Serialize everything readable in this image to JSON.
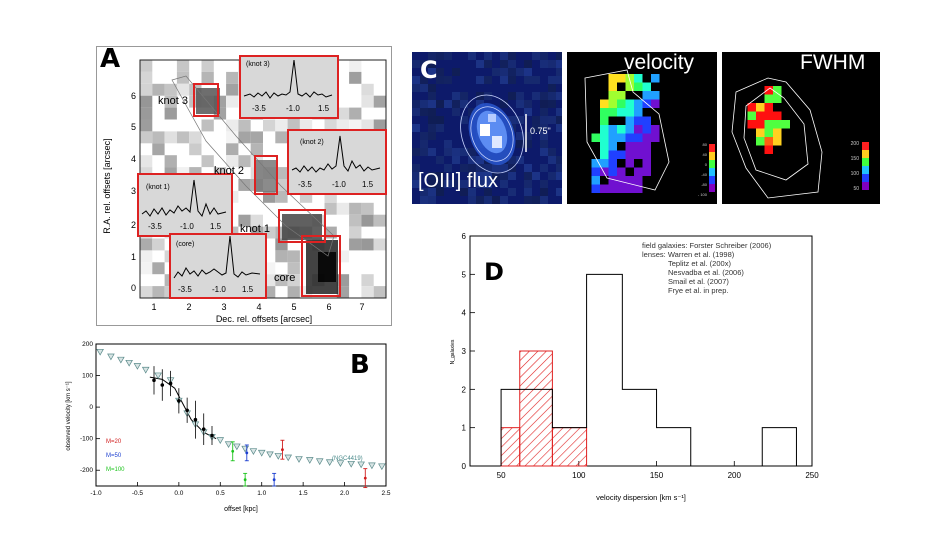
{
  "panel_a": {
    "letter": "A",
    "ylabel": "R.A. rel. offsets [arcsec]",
    "xlabel": "Dec. rel. offsets [arcsec]",
    "y_ticks": [
      "0",
      "1",
      "2",
      "3",
      "4",
      "5",
      "6"
    ],
    "x_ticks": [
      "1",
      "2",
      "3",
      "4",
      "5",
      "6",
      "7"
    ],
    "region_labels": {
      "knot3": "knot 3",
      "knot2": "knot 2",
      "knot1": "knot 1",
      "core": "core"
    },
    "insets": [
      {
        "name": "knot3",
        "title": "(knot 3)",
        "ticks": [
          "-3.5",
          "-1.0",
          "1.5"
        ]
      },
      {
        "name": "knot2",
        "title": "(knot 2)",
        "ticks": [
          "-3.5",
          "-1.0",
          "1.5"
        ]
      },
      {
        "name": "knot1",
        "title": "(knot 1)",
        "ticks": [
          "-3.5",
          "-1.0",
          "1.5"
        ]
      },
      {
        "name": "core",
        "title": "(core)",
        "ticks": [
          "-3.5",
          "-1.0",
          "1.5"
        ]
      }
    ]
  },
  "panel_c": {
    "letter": "C",
    "scale_label": "0.75\"",
    "flux_label": "[OIII] flux",
    "velocity_label": "velocity",
    "fwhm_label": "FWHM",
    "velocity_colorbar_ticks": [
      "80",
      "40",
      "0",
      "-40",
      "-80",
      "- 100"
    ],
    "fwhm_colorbar_ticks": [
      "200",
      "150",
      "100",
      "50"
    ]
  },
  "chart_data": [
    {
      "type": "scatter",
      "panel": "B",
      "letter": "B",
      "xlabel": "offset [kpc]",
      "ylabel": "observed velocity [km s⁻¹]",
      "xlim": [
        -1.0,
        2.5
      ],
      "ylim": [
        -250,
        200
      ],
      "x_ticks": [
        -1.0,
        -0.5,
        0.0,
        0.5,
        1.0,
        1.5,
        2.0,
        2.5
      ],
      "x_tick_labels": [
        "-1.0",
        "-0.5",
        "0.0",
        "0.5",
        "1.0",
        "1.5",
        "2.0",
        "2.5"
      ],
      "y_ticks": [
        -200,
        -100,
        0,
        100,
        200
      ],
      "y_tick_labels": [
        "-200",
        "-100",
        "0",
        "100",
        "200"
      ],
      "legend": [
        "M=20",
        "M=50",
        "M=100"
      ],
      "legend_colors": [
        "#d01c1c",
        "#1c3fd0",
        "#1cc41c"
      ],
      "annotation": "(NGC4419)",
      "ngc4419_points": [
        {
          "x": -0.95,
          "y": 175
        },
        {
          "x": -0.82,
          "y": 160
        },
        {
          "x": -0.7,
          "y": 150
        },
        {
          "x": -0.6,
          "y": 140
        },
        {
          "x": -0.5,
          "y": 130
        },
        {
          "x": -0.4,
          "y": 118
        },
        {
          "x": -0.25,
          "y": 100
        },
        {
          "x": -0.1,
          "y": 85
        },
        {
          "x": 0.0,
          "y": 20
        },
        {
          "x": 0.1,
          "y": -20
        },
        {
          "x": 0.2,
          "y": -55
        },
        {
          "x": 0.3,
          "y": -80
        },
        {
          "x": 0.4,
          "y": -95
        },
        {
          "x": 0.5,
          "y": -105
        },
        {
          "x": 0.6,
          "y": -118
        },
        {
          "x": 0.7,
          "y": -125
        },
        {
          "x": 0.8,
          "y": -132
        },
        {
          "x": 0.9,
          "y": -140
        },
        {
          "x": 1.0,
          "y": -145
        },
        {
          "x": 1.1,
          "y": -150
        },
        {
          "x": 1.2,
          "y": -155
        },
        {
          "x": 1.32,
          "y": -160
        },
        {
          "x": 1.45,
          "y": -165
        },
        {
          "x": 1.58,
          "y": -168
        },
        {
          "x": 1.7,
          "y": -172
        },
        {
          "x": 1.82,
          "y": -175
        },
        {
          "x": 1.95,
          "y": -178
        },
        {
          "x": 2.08,
          "y": -180
        },
        {
          "x": 2.2,
          "y": -182
        },
        {
          "x": 2.33,
          "y": -185
        },
        {
          "x": 2.45,
          "y": -188
        }
      ],
      "data_points": [
        {
          "x": -0.3,
          "y": 85,
          "err": 45
        },
        {
          "x": -0.2,
          "y": 70,
          "err": 50
        },
        {
          "x": -0.1,
          "y": 75,
          "err": 40
        },
        {
          "x": 0.0,
          "y": 20,
          "err": 40
        },
        {
          "x": 0.1,
          "y": -10,
          "err": 40
        },
        {
          "x": 0.2,
          "y": -40,
          "err": 60
        },
        {
          "x": 0.3,
          "y": -70,
          "err": 50
        },
        {
          "x": 0.4,
          "y": -90,
          "err": 30
        }
      ],
      "colored_points": [
        {
          "x": 0.65,
          "y": -140,
          "err": 30,
          "color": "#1cc41c"
        },
        {
          "x": 0.8,
          "y": -230,
          "err": 20,
          "color": "#1cc41c"
        },
        {
          "x": 0.82,
          "y": -145,
          "err": 25,
          "color": "#1c3fd0"
        },
        {
          "x": 1.15,
          "y": -230,
          "err": 20,
          "color": "#1c3fd0"
        },
        {
          "x": 1.25,
          "y": -135,
          "err": 30,
          "color": "#d01c1c"
        },
        {
          "x": 2.25,
          "y": -225,
          "err": 30,
          "color": "#d01c1c"
        }
      ],
      "model_curve": [
        {
          "x": -0.35,
          "y": 95
        },
        {
          "x": -0.2,
          "y": 88
        },
        {
          "x": -0.05,
          "y": 60
        },
        {
          "x": 0.05,
          "y": 10
        },
        {
          "x": 0.15,
          "y": -40
        },
        {
          "x": 0.3,
          "y": -80
        },
        {
          "x": 0.45,
          "y": -100
        }
      ]
    },
    {
      "type": "histogram",
      "panel": "D",
      "letter": "D",
      "xlabel": "velocity dispersion [km s⁻¹]",
      "ylabel": "N_galaxies",
      "xlim": [
        30,
        250
      ],
      "ylim": [
        0,
        6
      ],
      "x_ticks": [
        50,
        100,
        150,
        200,
        250
      ],
      "y_ticks": [
        0,
        1,
        2,
        3,
        4,
        5,
        6
      ],
      "legend": [
        "field galaxies: Forster Schreiber (2006)",
        "lenses: Warren et al. (1998)",
        "Teplitz et al. (200x)",
        "Nesvadba et al. (2006)",
        "Smail et al. (2007)",
        "Frye et al. in prep."
      ],
      "field_bins": [
        {
          "x0": 50,
          "x1": 62,
          "count": 2
        },
        {
          "x0": 62,
          "x1": 83,
          "count": 2
        },
        {
          "x0": 83,
          "x1": 105,
          "count": 1
        },
        {
          "x0": 105,
          "x1": 128,
          "count": 5
        },
        {
          "x0": 128,
          "x1": 150,
          "count": 2
        },
        {
          "x0": 150,
          "x1": 172,
          "count": 1
        },
        {
          "x0": 172,
          "x1": 218,
          "count": 0
        },
        {
          "x0": 218,
          "x1": 240,
          "count": 1
        }
      ],
      "lens_bins": [
        {
          "x0": 50,
          "x1": 62,
          "count": 1
        },
        {
          "x0": 62,
          "x1": 83,
          "count": 3
        },
        {
          "x0": 83,
          "x1": 105,
          "count": 1
        }
      ]
    }
  ]
}
